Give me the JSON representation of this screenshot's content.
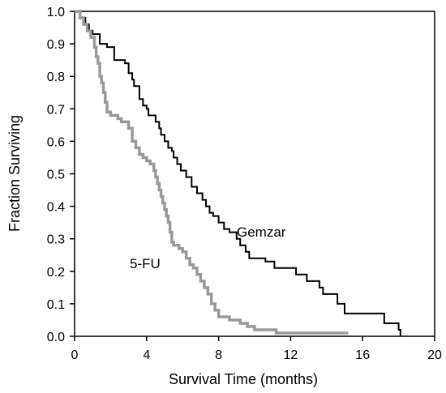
{
  "chart_data": {
    "type": "line",
    "line_style": "step",
    "xlabel": "Survival Time (months)",
    "ylabel": "Fraction Surviving",
    "xlim": [
      0,
      20
    ],
    "ylim": [
      0,
      1.0
    ],
    "x_ticks": [
      0,
      4,
      8,
      12,
      16,
      20
    ],
    "y_ticks": [
      "0.0",
      "0.1",
      "0.2",
      "0.3",
      "0.4",
      "0.5",
      "0.6",
      "0.7",
      "0.8",
      "0.9",
      "1.0"
    ],
    "grid": false,
    "legend": "none",
    "series": [
      {
        "name": "Gemzar",
        "color": "#000000",
        "points": [
          [
            0.0,
            1.0
          ],
          [
            0.3,
            0.98
          ],
          [
            0.6,
            0.96
          ],
          [
            0.8,
            0.94
          ],
          [
            1.0,
            0.93
          ],
          [
            1.4,
            0.9
          ],
          [
            1.8,
            0.89
          ],
          [
            2.2,
            0.85
          ],
          [
            2.8,
            0.84
          ],
          [
            3.0,
            0.81
          ],
          [
            3.2,
            0.79
          ],
          [
            3.3,
            0.77
          ],
          [
            3.6,
            0.73
          ],
          [
            3.8,
            0.71
          ],
          [
            4.0,
            0.7
          ],
          [
            4.1,
            0.68
          ],
          [
            4.5,
            0.66
          ],
          [
            4.7,
            0.64
          ],
          [
            4.8,
            0.62
          ],
          [
            5.0,
            0.6
          ],
          [
            5.2,
            0.58
          ],
          [
            5.4,
            0.57
          ],
          [
            5.5,
            0.55
          ],
          [
            5.7,
            0.53
          ],
          [
            5.9,
            0.51
          ],
          [
            6.2,
            0.49
          ],
          [
            6.5,
            0.46
          ],
          [
            6.8,
            0.44
          ],
          [
            7.1,
            0.42
          ],
          [
            7.3,
            0.4
          ],
          [
            7.5,
            0.38
          ],
          [
            7.7,
            0.37
          ],
          [
            8.0,
            0.35
          ],
          [
            8.3,
            0.33
          ],
          [
            8.6,
            0.32
          ],
          [
            9.0,
            0.3
          ],
          [
            9.2,
            0.28
          ],
          [
            9.5,
            0.26
          ],
          [
            9.7,
            0.24
          ],
          [
            10.6,
            0.23
          ],
          [
            11.1,
            0.21
          ],
          [
            12.3,
            0.19
          ],
          [
            12.9,
            0.17
          ],
          [
            13.6,
            0.15
          ],
          [
            13.8,
            0.13
          ],
          [
            14.6,
            0.1
          ],
          [
            15.0,
            0.07
          ],
          [
            17.2,
            0.04
          ],
          [
            18.0,
            0.02
          ],
          [
            18.1,
            0.0
          ]
        ]
      },
      {
        "name": "5-FU",
        "color": "#999999",
        "points": [
          [
            0.0,
            1.0
          ],
          [
            0.3,
            0.98
          ],
          [
            0.5,
            0.96
          ],
          [
            0.7,
            0.94
          ],
          [
            0.9,
            0.92
          ],
          [
            1.1,
            0.89
          ],
          [
            1.2,
            0.86
          ],
          [
            1.3,
            0.84
          ],
          [
            1.4,
            0.8
          ],
          [
            1.5,
            0.78
          ],
          [
            1.6,
            0.75
          ],
          [
            1.7,
            0.72
          ],
          [
            1.8,
            0.69
          ],
          [
            2.0,
            0.68
          ],
          [
            2.4,
            0.67
          ],
          [
            2.6,
            0.66
          ],
          [
            3.0,
            0.64
          ],
          [
            3.2,
            0.6
          ],
          [
            3.4,
            0.58
          ],
          [
            3.6,
            0.56
          ],
          [
            3.8,
            0.55
          ],
          [
            4.0,
            0.54
          ],
          [
            4.2,
            0.53
          ],
          [
            4.4,
            0.51
          ],
          [
            4.5,
            0.49
          ],
          [
            4.6,
            0.47
          ],
          [
            4.7,
            0.45
          ],
          [
            4.8,
            0.43
          ],
          [
            4.9,
            0.41
          ],
          [
            5.0,
            0.39
          ],
          [
            5.1,
            0.37
          ],
          [
            5.2,
            0.35
          ],
          [
            5.3,
            0.32
          ],
          [
            5.4,
            0.29
          ],
          [
            5.5,
            0.28
          ],
          [
            5.8,
            0.27
          ],
          [
            6.0,
            0.26
          ],
          [
            6.2,
            0.24
          ],
          [
            6.4,
            0.22
          ],
          [
            6.6,
            0.21
          ],
          [
            6.8,
            0.19
          ],
          [
            7.0,
            0.17
          ],
          [
            7.2,
            0.15
          ],
          [
            7.4,
            0.13
          ],
          [
            7.6,
            0.1
          ],
          [
            7.8,
            0.08
          ],
          [
            8.0,
            0.06
          ],
          [
            8.6,
            0.05
          ],
          [
            9.2,
            0.04
          ],
          [
            9.6,
            0.03
          ],
          [
            10.0,
            0.02
          ],
          [
            11.2,
            0.01
          ],
          [
            15.2,
            0.01
          ]
        ]
      }
    ],
    "annotations": [
      {
        "text": "Gemzar",
        "series": "Gemzar"
      },
      {
        "text": "5-FU",
        "series": "5-FU"
      }
    ]
  }
}
